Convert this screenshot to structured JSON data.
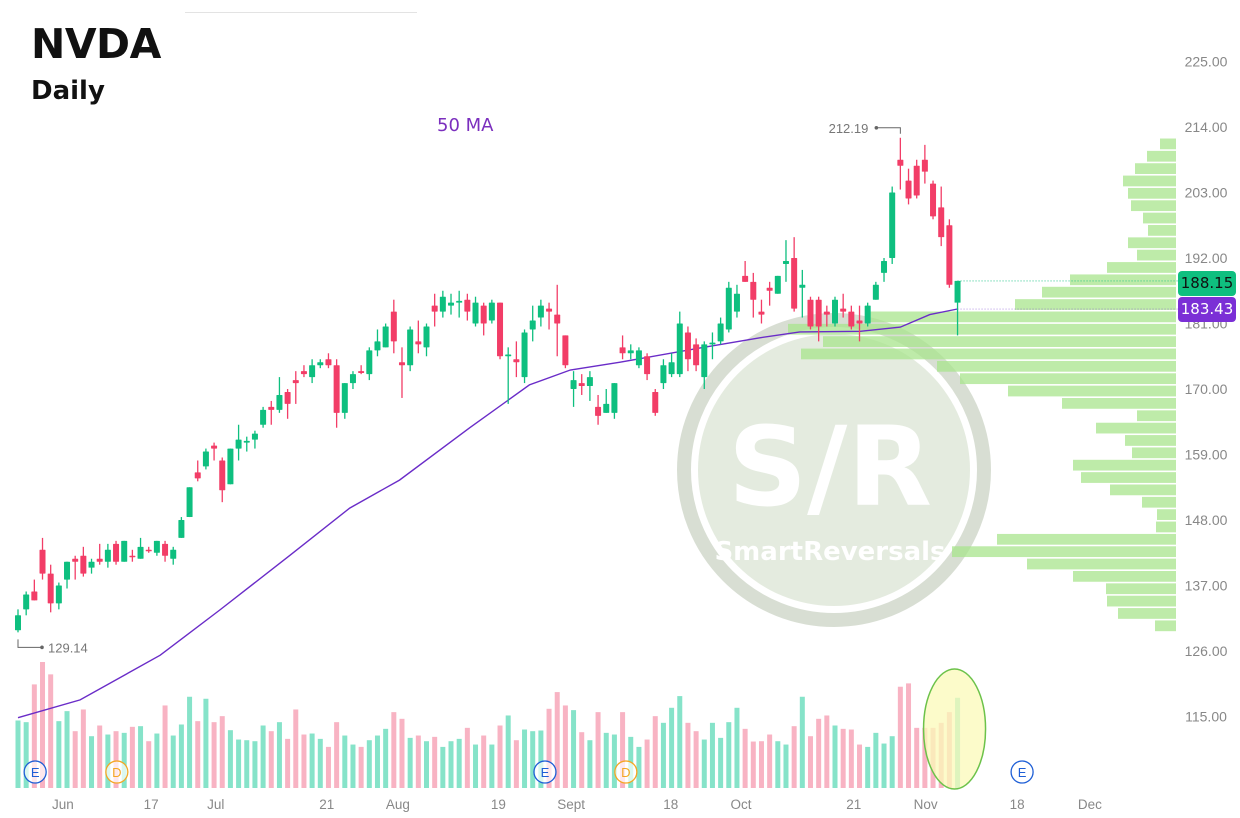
{
  "header": {
    "ticker": "NVDA",
    "timeframe": "Daily",
    "ma_label": "50 MA"
  },
  "badges": {
    "last_price": "188.15",
    "ma_value": "183.43"
  },
  "annotations": {
    "high": "212.19",
    "low": "129.14"
  },
  "watermark": {
    "mark": "S/R",
    "brand": "SmartReversals"
  },
  "colors": {
    "up": "#0ebf7f",
    "down": "#f23d67",
    "vol_up": "#86e3c9",
    "vol_down": "#f8b3c3",
    "ma": "#6a2cc8",
    "profile": "#a8e48c",
    "highlight_fill": "#fbf9b8",
    "highlight_stroke": "#6cc24a",
    "earnings": "#1f5fd6",
    "dividend": "#f5a623"
  },
  "chart_data": {
    "type": "candlestick",
    "title": "NVDA",
    "subtitle": "Daily",
    "y_axis": {
      "ticks": [
        "225.00",
        "214.00",
        "203.00",
        "192.00",
        "181.00",
        "170.00",
        "159.00",
        "148.00",
        "137.00",
        "126.00",
        "115.00"
      ],
      "range": [
        115,
        225
      ],
      "position": "right"
    },
    "x_axis": {
      "labels": [
        {
          "text": "Jun",
          "at": 5.5
        },
        {
          "text": "17",
          "at": 16.3
        },
        {
          "text": "Jul",
          "at": 24.2
        },
        {
          "text": "21",
          "at": 37.8
        },
        {
          "text": "Aug",
          "at": 46.5
        },
        {
          "text": "19",
          "at": 58.8
        },
        {
          "text": "Sept",
          "at": 67.7
        },
        {
          "text": "18",
          "at": 79.9
        },
        {
          "text": "Oct",
          "at": 88.5
        },
        {
          "text": "21",
          "at": 102.3
        },
        {
          "text": "Nov",
          "at": 111.1
        },
        {
          "text": "18",
          "at": 122.3
        },
        {
          "text": "Dec",
          "at": 131.2
        }
      ]
    },
    "grid": false,
    "ohlc": [
      [
        129.5,
        133,
        129.14,
        132
      ],
      [
        133,
        136,
        132,
        135.5
      ],
      [
        136,
        138,
        134.5,
        134.5
      ],
      [
        143,
        145,
        138,
        139
      ],
      [
        139,
        140.5,
        132.5,
        134
      ],
      [
        134,
        137.5,
        133,
        137
      ],
      [
        138,
        141,
        136.5,
        141
      ],
      [
        141.5,
        142,
        138,
        141
      ],
      [
        142,
        143.5,
        138.5,
        139
      ],
      [
        140,
        141.5,
        139,
        141
      ],
      [
        141.5,
        144,
        140.5,
        141
      ],
      [
        141,
        144,
        140,
        143
      ],
      [
        144,
        144.5,
        140.5,
        141
      ],
      [
        141,
        144.5,
        141,
        144.5
      ],
      [
        142,
        143,
        141,
        141.8
      ],
      [
        141.5,
        145,
        141.5,
        143.5
      ],
      [
        143,
        143.5,
        142.5,
        142.8
      ],
      [
        142.5,
        144.5,
        142,
        144.5
      ],
      [
        144,
        144.5,
        141,
        142
      ],
      [
        141.5,
        143.5,
        140.5,
        143
      ],
      [
        145,
        148.5,
        145,
        148
      ],
      [
        148.5,
        153.5,
        148.5,
        153.5
      ],
      [
        156,
        158,
        154.5,
        155
      ],
      [
        157,
        160,
        156.5,
        159.5
      ],
      [
        160.5,
        161,
        158,
        160
      ],
      [
        158,
        158.5,
        151,
        153
      ],
      [
        154,
        160,
        154,
        160
      ],
      [
        160,
        164,
        158,
        161.5
      ],
      [
        161,
        162,
        159.5,
        161.3
      ],
      [
        161.5,
        163,
        160,
        162.5
      ],
      [
        164,
        167,
        163.5,
        166.5
      ],
      [
        167,
        168,
        164,
        166.5
      ],
      [
        166.5,
        172,
        166,
        169
      ],
      [
        169.5,
        170,
        165,
        167.5
      ],
      [
        171.5,
        173,
        167.5,
        171
      ],
      [
        173,
        174,
        172,
        172.5
      ],
      [
        172,
        175,
        171,
        174
      ],
      [
        174,
        175,
        173.5,
        174.5
      ],
      [
        175,
        176,
        173.5,
        174
      ],
      [
        174,
        175,
        163.5,
        166
      ],
      [
        166,
        171,
        165,
        171
      ],
      [
        171,
        173,
        170,
        172.5
      ],
      [
        173,
        174,
        172.5,
        172.7
      ],
      [
        172.5,
        177,
        171.5,
        176.5
      ],
      [
        176.5,
        180,
        175.5,
        178
      ],
      [
        177,
        181,
        177,
        180.5
      ],
      [
        183,
        185,
        176,
        178
      ],
      [
        174.5,
        177,
        168.5,
        174
      ],
      [
        174,
        180.5,
        173,
        180
      ],
      [
        178,
        181.5,
        176,
        177.5
      ],
      [
        177,
        181,
        175.5,
        180.5
      ],
      [
        184,
        186,
        180.5,
        183
      ],
      [
        183,
        186.5,
        182,
        185.5
      ],
      [
        184,
        186,
        182.5,
        184.5
      ],
      [
        184.5,
        186.5,
        182,
        184.8
      ],
      [
        185,
        186,
        181.5,
        183
      ],
      [
        181,
        185.5,
        180.5,
        184.5
      ],
      [
        184,
        184.5,
        179,
        181
      ],
      [
        181.5,
        185,
        181,
        184.5
      ],
      [
        184.5,
        184.5,
        175,
        175.5
      ],
      [
        175.5,
        177,
        167.5,
        175.8
      ],
      [
        175,
        178,
        172,
        174.5
      ],
      [
        172,
        180,
        171,
        179.5
      ],
      [
        180,
        184,
        178,
        181.5
      ],
      [
        182,
        185,
        180.5,
        184
      ],
      [
        183.5,
        184.5,
        180,
        183
      ],
      [
        182.5,
        187.5,
        175.5,
        181
      ],
      [
        179,
        179,
        173.5,
        174
      ],
      [
        170,
        173,
        167,
        171.5
      ],
      [
        171,
        172.5,
        169,
        170.5
      ],
      [
        170.5,
        173,
        168,
        172
      ],
      [
        167,
        169,
        164,
        165.5
      ],
      [
        166,
        170,
        166,
        167.5
      ],
      [
        166,
        171,
        165,
        171
      ],
      [
        177,
        179,
        175,
        176
      ],
      [
        176,
        177.5,
        175,
        176.5
      ],
      [
        174,
        177,
        173.5,
        176.5
      ],
      [
        175.5,
        176,
        171.5,
        172.5
      ],
      [
        169.5,
        170,
        165.5,
        166
      ],
      [
        171,
        175,
        170,
        174
      ],
      [
        172.5,
        176,
        172,
        174.5
      ],
      [
        172.5,
        183,
        172,
        181
      ],
      [
        179.5,
        180.5,
        173,
        175
      ],
      [
        177.5,
        178.5,
        173,
        174
      ],
      [
        172,
        178,
        170,
        177.5
      ],
      [
        177.5,
        179.5,
        175,
        177.8
      ],
      [
        178,
        182,
        177.5,
        181
      ],
      [
        180,
        188,
        179.5,
        187
      ],
      [
        183,
        187.5,
        182,
        186
      ],
      [
        189,
        191.5,
        188,
        188
      ],
      [
        188,
        189.5,
        182,
        185
      ],
      [
        183,
        185,
        181,
        182.5
      ],
      [
        187,
        188,
        184,
        186.5
      ],
      [
        186,
        189,
        186,
        189
      ],
      [
        191,
        195,
        188,
        191.5
      ],
      [
        192,
        195.5,
        183,
        183.5
      ],
      [
        187,
        190,
        182,
        187.5
      ],
      [
        185,
        185.5,
        180,
        180.5
      ],
      [
        185,
        185.5,
        178,
        180.5
      ],
      [
        183,
        184,
        180.5,
        182.5
      ],
      [
        181,
        185.5,
        180.5,
        185
      ],
      [
        183.5,
        186,
        182,
        183
      ],
      [
        183,
        184,
        180,
        180.5
      ],
      [
        181.5,
        184,
        178,
        181
      ],
      [
        181,
        184.5,
        180.5,
        184
      ],
      [
        185,
        188,
        185,
        187.5
      ],
      [
        189.5,
        192,
        188,
        191.5
      ],
      [
        192,
        204,
        191,
        203
      ],
      [
        208.5,
        212.19,
        203.5,
        207.5
      ],
      [
        205,
        207,
        201,
        202
      ],
      [
        207.5,
        208.5,
        202,
        202.5
      ],
      [
        208.5,
        211,
        204.5,
        206.5
      ],
      [
        204.5,
        205,
        198.5,
        199
      ],
      [
        200.5,
        204,
        194,
        195.5
      ],
      [
        197.5,
        198.5,
        187,
        187.5
      ],
      [
        184.5,
        188.15,
        179,
        188.15
      ]
    ],
    "volume": [
      202,
      197,
      310,
      377,
      340,
      200,
      230,
      170,
      235,
      155,
      187,
      160,
      170,
      165,
      183,
      185,
      140,
      163,
      247,
      157,
      190,
      273,
      200,
      267,
      197,
      215,
      173,
      145,
      143,
      140,
      187,
      170,
      197,
      147,
      235,
      160,
      163,
      147,
      123,
      197,
      157,
      130,
      123,
      143,
      157,
      177,
      227,
      207,
      150,
      157,
      140,
      153,
      123,
      140,
      147,
      180,
      130,
      157,
      130,
      187,
      217,
      143,
      175,
      170,
      172,
      237,
      287,
      247,
      233,
      167,
      143,
      227,
      165,
      160,
      227,
      153,
      123,
      145,
      215,
      195,
      240,
      275,
      195,
      170,
      145,
      195,
      150,
      197,
      240,
      177,
      139,
      140,
      160,
      140,
      130,
      185,
      273,
      155,
      207,
      217,
      187,
      177,
      175,
      130,
      123,
      165,
      133,
      155,
      303,
      313,
      180,
      180,
      180,
      195,
      227,
      270
    ],
    "ma50": {
      "name": "50 MA",
      "points": [
        [
          0,
          114.8
        ],
        [
          7.6,
          117.8
        ],
        [
          17.4,
          125.3
        ],
        [
          24.7,
          132.9
        ],
        [
          33.3,
          142.1
        ],
        [
          40.6,
          150
        ],
        [
          46.7,
          154.7
        ],
        [
          55.3,
          163.5
        ],
        [
          62.6,
          170.7
        ],
        [
          67.6,
          173.2
        ],
        [
          73.7,
          174.5
        ],
        [
          83.5,
          176.9
        ],
        [
          90.8,
          178.6
        ],
        [
          95.7,
          179.6
        ],
        [
          103.1,
          179.7
        ],
        [
          108,
          180.4
        ],
        [
          111.6,
          182.5
        ],
        [
          115,
          183.43
        ]
      ]
    },
    "volume_profile": {
      "price_range": [
        129.2,
        212.2
      ],
      "bins_top_to_bottom": [
        16,
        29,
        41,
        53,
        48,
        45,
        33,
        28,
        48,
        39,
        69,
        106,
        134,
        161,
        306,
        388,
        353,
        375,
        239,
        216,
        168,
        114,
        39,
        80,
        51,
        44,
        103,
        95,
        66,
        34,
        19,
        20,
        179,
        224,
        149,
        103,
        70,
        69,
        58,
        21
      ]
    },
    "events": [
      {
        "label": "E",
        "type": "earnings",
        "at": 2.1
      },
      {
        "label": "D",
        "type": "dividend",
        "at": 12.1
      },
      {
        "label": "E",
        "type": "earnings",
        "at": 64.5
      },
      {
        "label": "D",
        "type": "dividend",
        "at": 74.4
      },
      {
        "label": "E",
        "type": "earnings",
        "at": 122.9
      }
    ],
    "highlight": {
      "at": 115
    }
  }
}
